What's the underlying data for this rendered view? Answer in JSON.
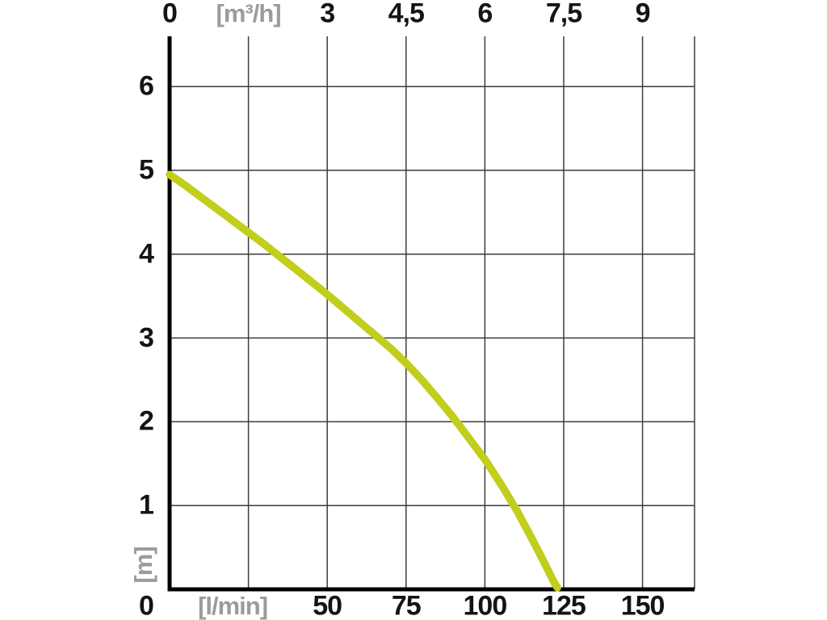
{
  "chart_data": {
    "type": "line",
    "axes": {
      "top": {
        "unit_label": "[m³/h]",
        "unit_position_lmin": 25,
        "ticks": [
          {
            "x_lmin": 0,
            "label": "0"
          },
          {
            "x_lmin": 50,
            "label": "3"
          },
          {
            "x_lmin": 75,
            "label": "4,5"
          },
          {
            "x_lmin": 100,
            "label": "6"
          },
          {
            "x_lmin": 125,
            "label": "7,5"
          },
          {
            "x_lmin": 150,
            "label": "9"
          }
        ]
      },
      "bottom": {
        "unit_label": "[l/min]",
        "unit_position_lmin": 20,
        "origin_label": "0",
        "ticks": [
          {
            "x_lmin": 50,
            "label": "50"
          },
          {
            "x_lmin": 75,
            "label": "75"
          },
          {
            "x_lmin": 100,
            "label": "100"
          },
          {
            "x_lmin": 125,
            "label": "125"
          },
          {
            "x_lmin": 150,
            "label": "150"
          }
        ]
      },
      "left": {
        "unit_label": "[m]",
        "ticks": [
          {
            "y_m": 1,
            "label": "1"
          },
          {
            "y_m": 2,
            "label": "2"
          },
          {
            "y_m": 3,
            "label": "3"
          },
          {
            "y_m": 4,
            "label": "4"
          },
          {
            "y_m": 5,
            "label": "5"
          },
          {
            "y_m": 6,
            "label": "6"
          }
        ]
      }
    },
    "xlim_lmin": [
      0,
      166.5
    ],
    "ylim_m": [
      0,
      6.6
    ],
    "grid": {
      "x_step_lmin": 25,
      "x_max_lmin": 150,
      "y_step_m": 1,
      "y_max_m": 6
    },
    "series": [
      {
        "name": "pump-performance-curve",
        "color": "#c1ce1c",
        "points_lmin_m": [
          [
            0,
            4.95
          ],
          [
            5,
            4.82
          ],
          [
            10,
            4.68
          ],
          [
            15,
            4.54
          ],
          [
            20,
            4.4
          ],
          [
            25,
            4.26
          ],
          [
            30,
            4.12
          ],
          [
            35,
            3.97
          ],
          [
            40,
            3.82
          ],
          [
            45,
            3.67
          ],
          [
            50,
            3.52
          ],
          [
            55,
            3.36
          ],
          [
            60,
            3.2
          ],
          [
            65,
            3.04
          ],
          [
            70,
            2.88
          ],
          [
            75,
            2.7
          ],
          [
            80,
            2.5
          ],
          [
            85,
            2.28
          ],
          [
            90,
            2.05
          ],
          [
            95,
            1.8
          ],
          [
            100,
            1.55
          ],
          [
            105,
            1.26
          ],
          [
            110,
            0.95
          ],
          [
            115,
            0.6
          ],
          [
            118,
            0.38
          ],
          [
            120,
            0.23
          ],
          [
            122,
            0.08
          ],
          [
            123,
            0.02
          ]
        ]
      }
    ],
    "colors": {
      "tick_label": "#141414",
      "unit_label": "#9b9b9b",
      "grid_line": "#3c3c3c",
      "axis_line": "#000000",
      "background": "#ffffff"
    }
  }
}
